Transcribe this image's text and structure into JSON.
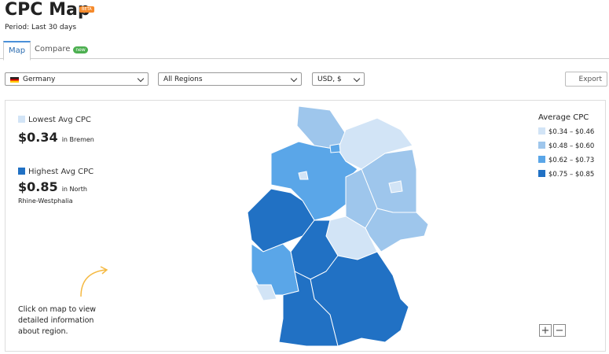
{
  "header": {
    "title": "CPC Map",
    "badge": "BETA",
    "period": "Period: Last 30 days"
  },
  "tabs": [
    {
      "label": "Map"
    },
    {
      "label": "Compare",
      "badge": "new"
    }
  ],
  "filters": {
    "country": "Germany",
    "region": "All Regions",
    "currency": "USD, $",
    "export": "Export"
  },
  "summary": {
    "lowest_label": "Lowest Avg CPC",
    "lowest_value": "$0.34",
    "lowest_region": "in Bremen",
    "highest_label": "Highest Avg CPC",
    "highest_value": "$0.85",
    "highest_region": "in North Rhine-Westphalia"
  },
  "hint": "Click on map to view detailed information about region.",
  "legend": {
    "title": "Average CPC",
    "items": [
      {
        "label": "$0.34 – $0.46",
        "color": "#d2e4f6"
      },
      {
        "label": "$0.48 – $0.60",
        "color": "#9ec6ec"
      },
      {
        "label": "$0.62 – $0.73",
        "color": "#5aa6e8"
      },
      {
        "label": "$0.75 – $0.85",
        "color": "#2171c4"
      }
    ]
  },
  "zoom": {
    "in": "+",
    "out": "−"
  }
}
